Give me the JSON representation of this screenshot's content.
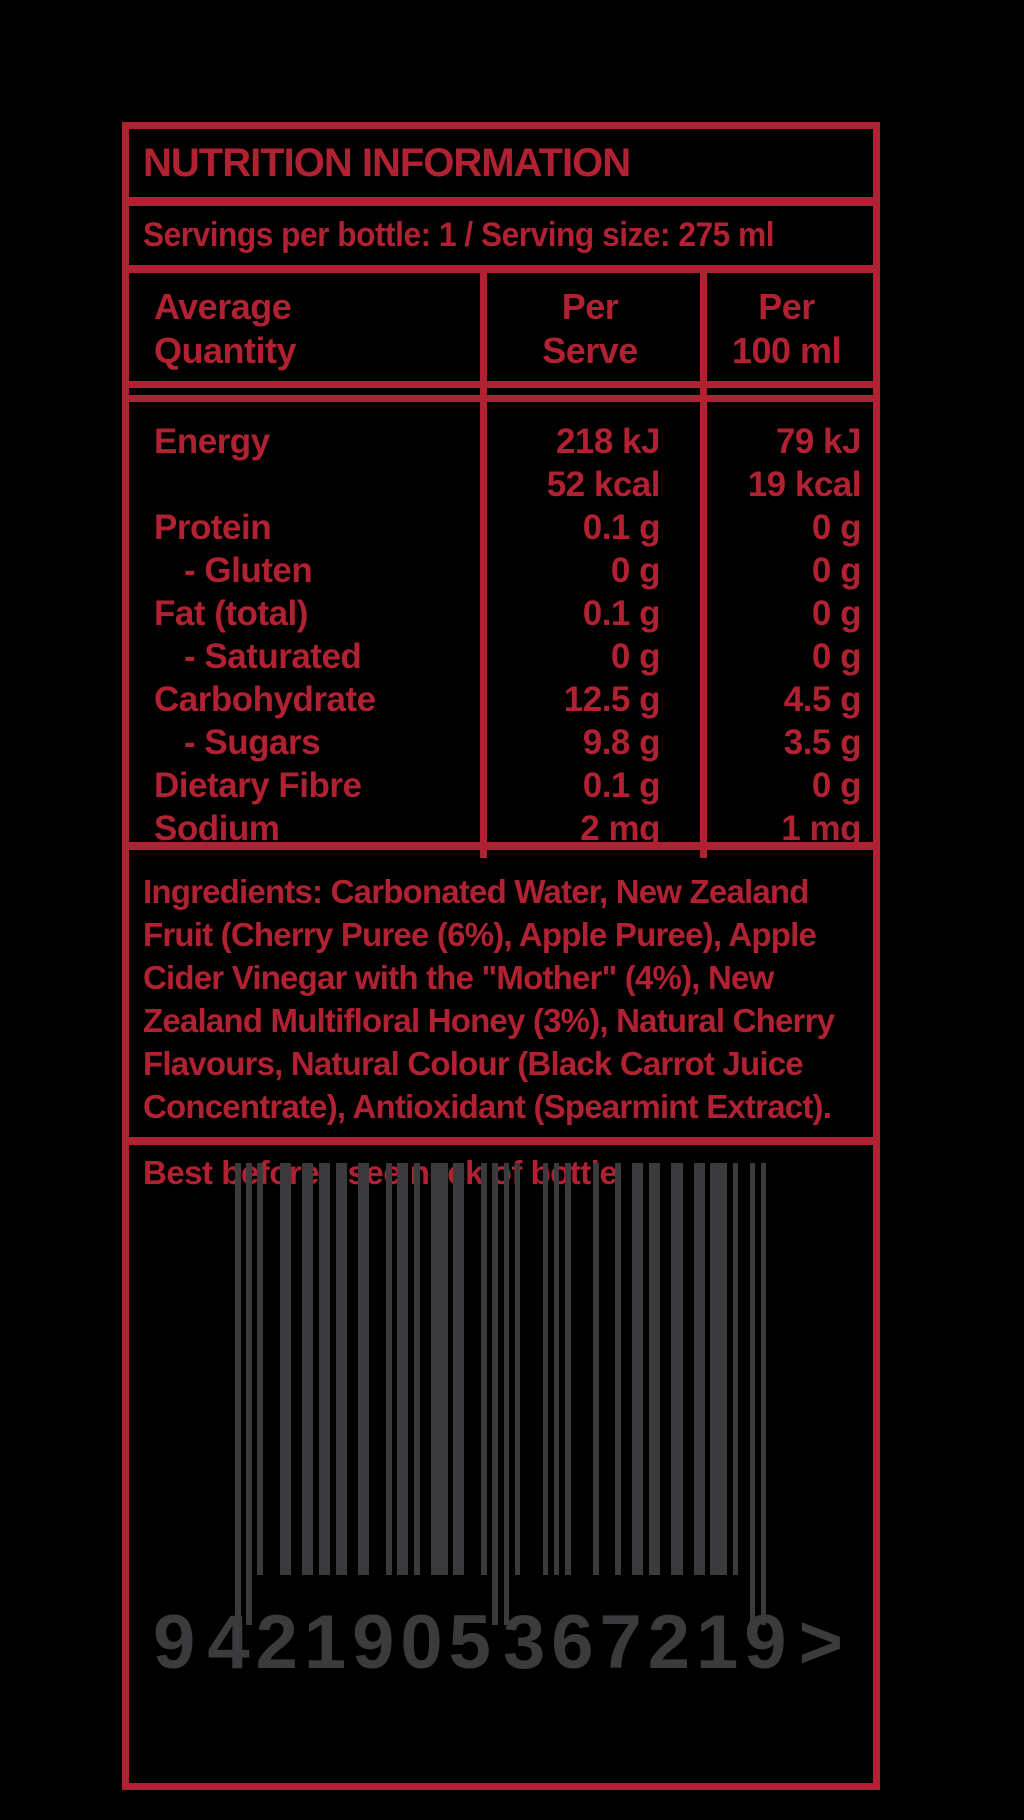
{
  "colors": {
    "red": "#b02132",
    "gray": "#3b3b3d",
    "background": "#000000"
  },
  "label": {
    "title": "NUTRITION INFORMATION",
    "serving_line": "Servings per bottle: 1  /  Serving size: 275 ml",
    "table": {
      "headers": {
        "col1_line1": "Average",
        "col1_line2": "Quantity",
        "col2_line1": "Per",
        "col2_line2": "Serve",
        "col3_line1": "Per",
        "col3_line2": "100 ml"
      },
      "rows": [
        {
          "name": "Energy",
          "serve": "218 kJ",
          "per100": "79 kJ",
          "indent": false
        },
        {
          "name": "",
          "serve": "52 kcal",
          "per100": "19 kcal",
          "indent": false
        },
        {
          "name": "Protein",
          "serve": "0.1 g",
          "per100": "0 g",
          "indent": false
        },
        {
          "name": "- Gluten",
          "serve": "0 g",
          "per100": "0 g",
          "indent": true
        },
        {
          "name": "Fat (total)",
          "serve": "0.1 g",
          "per100": "0 g",
          "indent": false
        },
        {
          "name": "- Saturated",
          "serve": "0 g",
          "per100": "0 g",
          "indent": true
        },
        {
          "name": "Carbohydrate",
          "serve": "12.5 g",
          "per100": "4.5 g",
          "indent": false
        },
        {
          "name": "- Sugars",
          "serve": "9.8 g",
          "per100": "3.5 g",
          "indent": true
        },
        {
          "name": "Dietary Fibre",
          "serve": "0.1 g",
          "per100": "0 g",
          "indent": false
        },
        {
          "name": "Sodium",
          "serve": "2 mg",
          "per100": "1 mg",
          "indent": false
        }
      ]
    },
    "ingredients_label": "Ingredients:",
    "ingredients_text": " Carbonated Water, New Zealand Fruit (Cherry Puree (6%), Apple Puree),  Apple Cider Vinegar with the \"Mother\" (4%), New Zealand Multifloral Honey (3%), Natural Cherry Flavours, Natural Colour (Black Carrot Juice Concentrate), Antioxidant (Spearmint Extract).",
    "best_before_label": "Best before:",
    "best_before_value": "see neck of bottle"
  },
  "barcode": {
    "value": "9421905367219",
    "digit_left": "9",
    "digits_group1": "421905",
    "digits_group2": "367219",
    "arrow": ">",
    "modules": "10101000110011011011001100010110100111011000101010100001010100001000100110110011001101110100101"
  }
}
